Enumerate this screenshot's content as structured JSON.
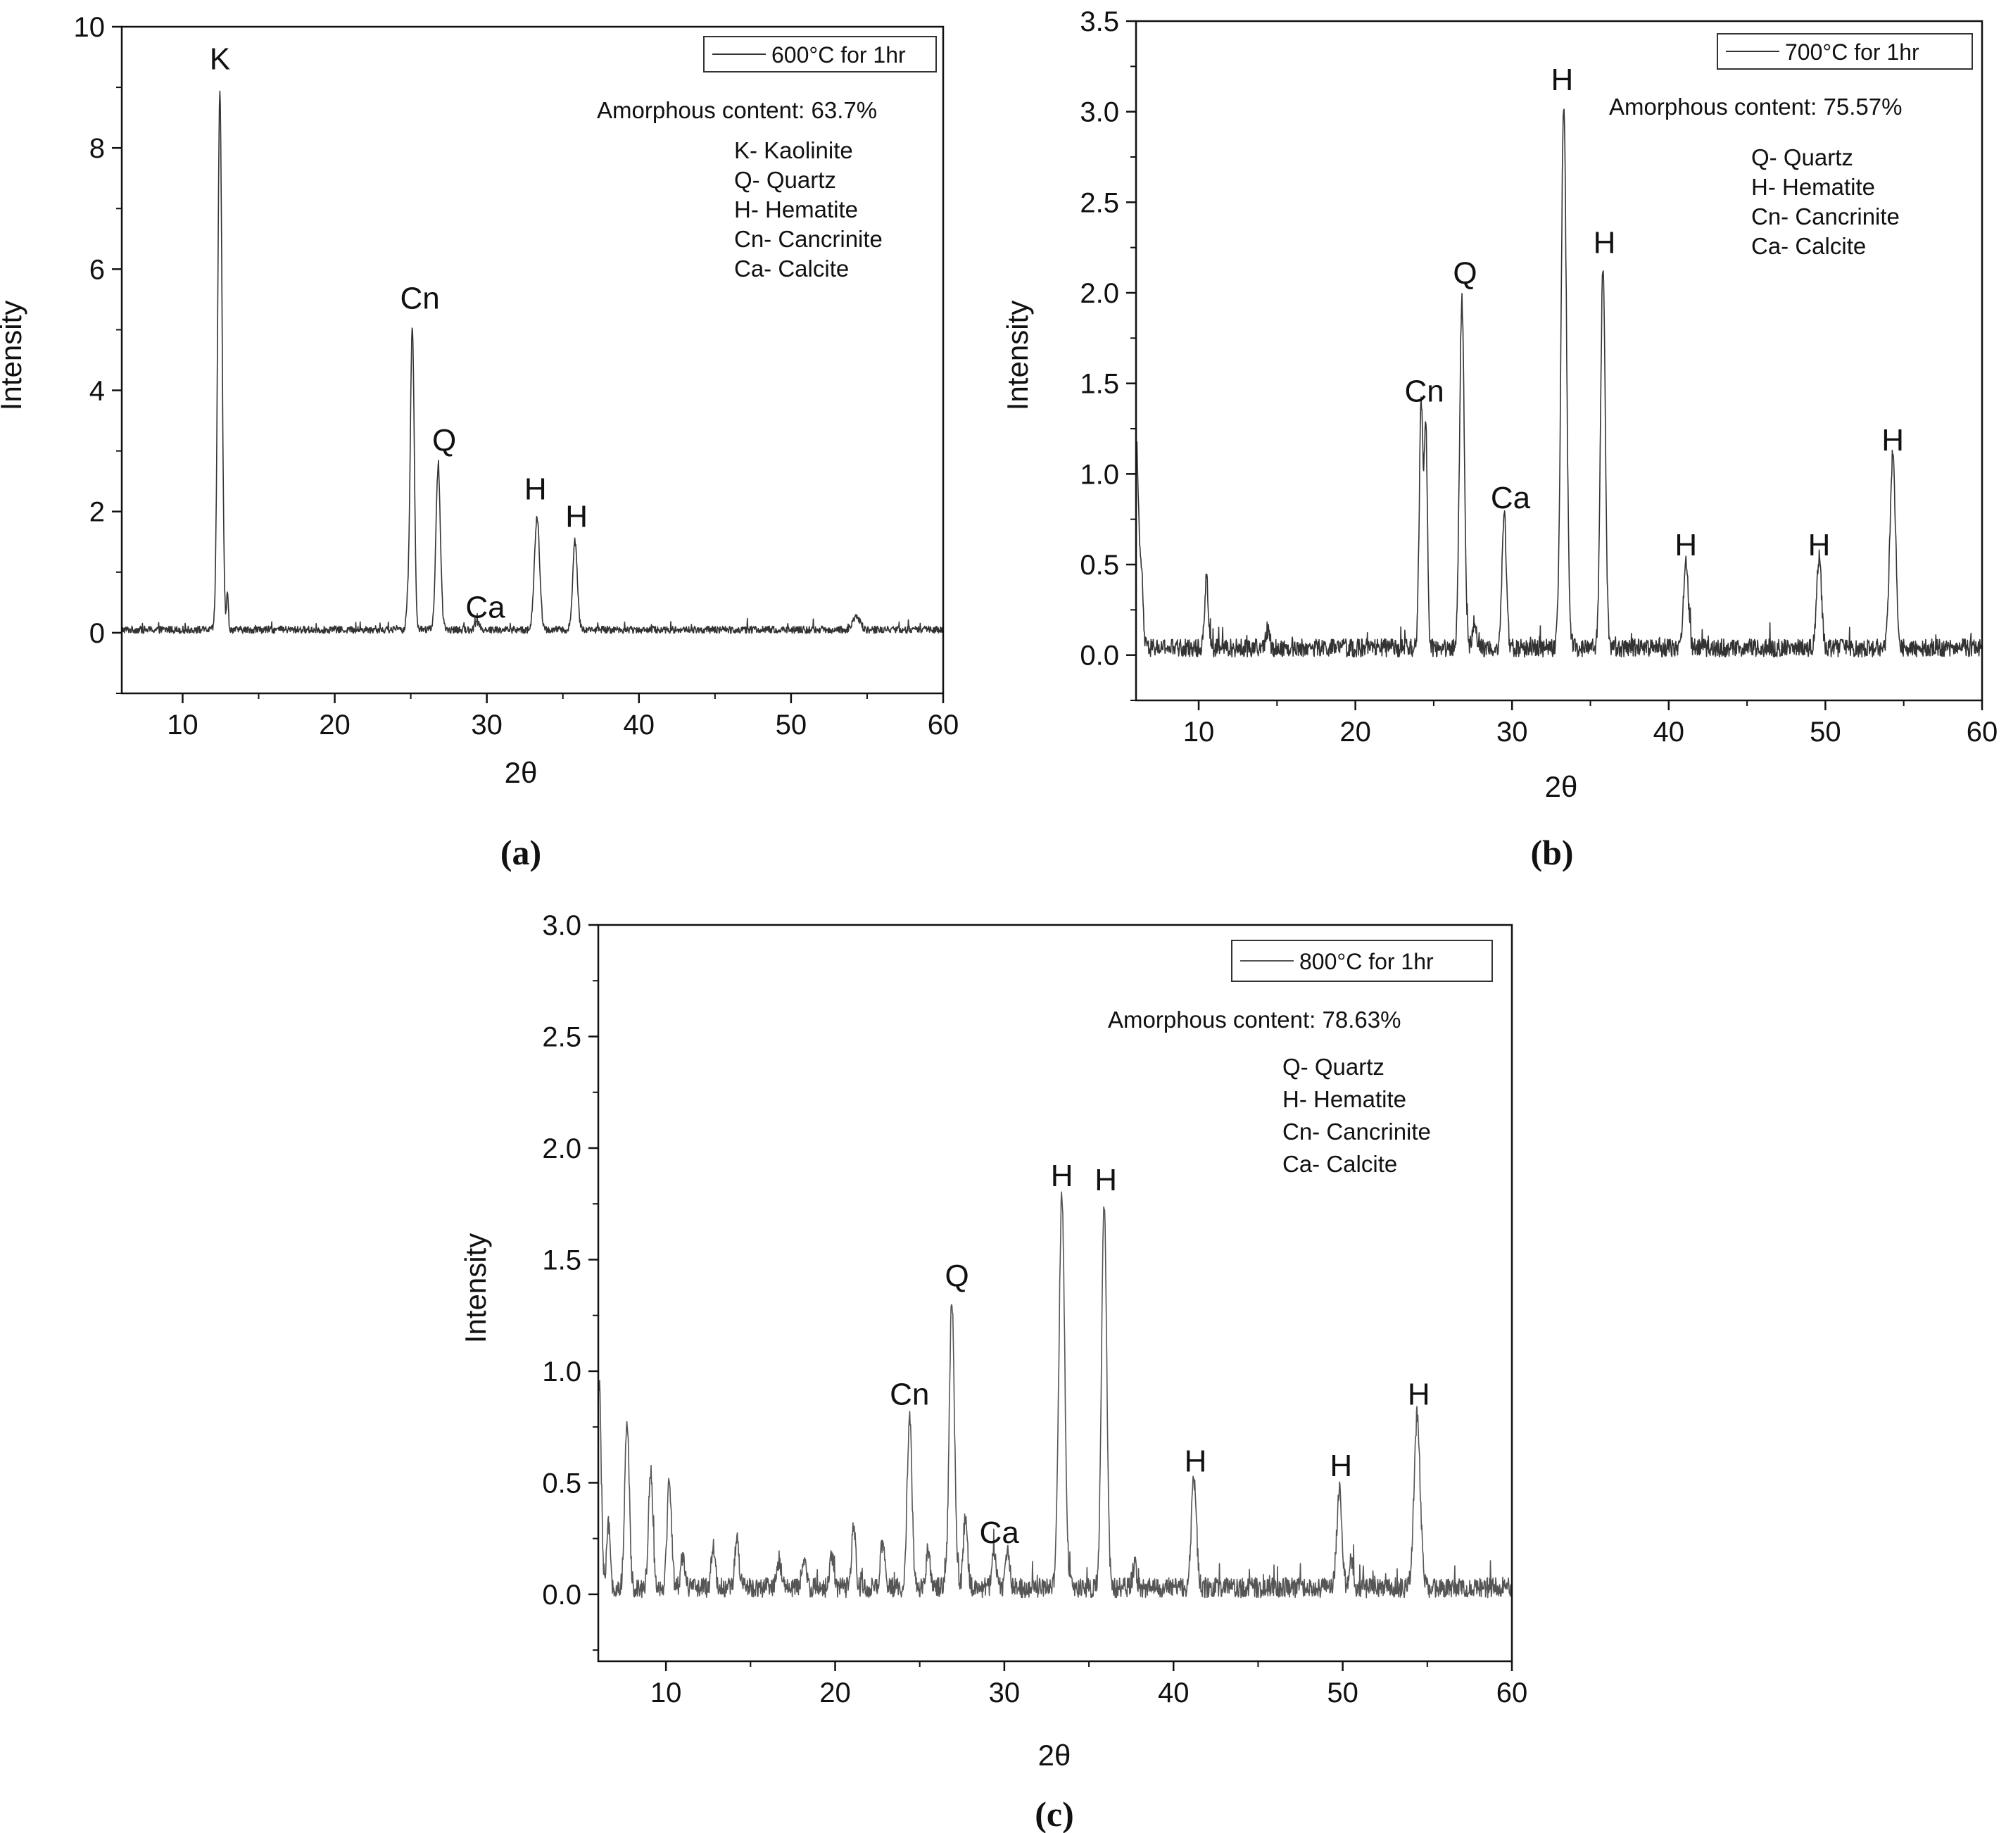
{
  "chart_data": [
    {
      "type": "line",
      "panel_label": "(a)",
      "xlabel": "2θ",
      "ylabel": "Intensity",
      "xlim": [
        6,
        60
      ],
      "ylim": [
        -1,
        10
      ],
      "xticks": [
        10,
        20,
        30,
        40,
        50,
        60
      ],
      "yticks": [
        0,
        2,
        4,
        6,
        8,
        10
      ],
      "ytick_labels": [
        "0",
        "2",
        "4",
        "6",
        "8",
        "10"
      ],
      "grid": false,
      "legend_position": "top-right",
      "series": [
        {
          "name": "600°C for 1hr",
          "color": "#333333",
          "baseline": 0.05,
          "noise": 0.12,
          "peaks": [
            {
              "x": 12.45,
              "y": 8.85,
              "w": 0.14
            },
            {
              "x": 12.95,
              "y": 0.6,
              "w": 0.06
            },
            {
              "x": 24.8,
              "y": 0.4,
              "w": 0.1
            },
            {
              "x": 25.1,
              "y": 5.0,
              "w": 0.13
            },
            {
              "x": 26.8,
              "y": 2.65,
              "w": 0.15
            },
            {
              "x": 29.4,
              "y": 0.12,
              "w": 0.15
            },
            {
              "x": 33.3,
              "y": 1.85,
              "w": 0.17
            },
            {
              "x": 35.8,
              "y": 1.45,
              "w": 0.15
            },
            {
              "x": 54.3,
              "y": 0.2,
              "w": 0.25
            }
          ]
        }
      ],
      "annotations": [
        {
          "text": "K",
          "x": 12.45,
          "y": 9.3
        },
        {
          "text": "Cn",
          "x": 25.6,
          "y": 5.35
        },
        {
          "text": "Q",
          "x": 27.2,
          "y": 3.0
        },
        {
          "text": "Ca",
          "x": 29.9,
          "y": 0.25
        },
        {
          "text": "H",
          "x": 33.2,
          "y": 2.2
        },
        {
          "text": "H",
          "x": 35.9,
          "y": 1.75
        }
      ],
      "notes": [
        "Amorphous content: 63.7%",
        "K- Kaolinite",
        "Q- Quartz",
        "H- Hematite",
        "Cn- Cancrinite",
        "Ca- Calcite"
      ]
    },
    {
      "type": "line",
      "panel_label": "(b)",
      "xlabel": "2θ",
      "ylabel": "Intensity",
      "xlim": [
        6,
        60
      ],
      "ylim": [
        -0.25,
        3.5
      ],
      "xticks": [
        10,
        20,
        30,
        40,
        50,
        60
      ],
      "yticks": [
        0,
        0.5,
        1.0,
        1.5,
        2.0,
        2.5,
        3.0,
        3.5
      ],
      "ytick_labels": [
        "0.0",
        "0.5",
        "1.0",
        "1.5",
        "2.0",
        "2.5",
        "3.0",
        "3.5"
      ],
      "grid": false,
      "legend_position": "top-right",
      "series": [
        {
          "name": "700°C for 1hr",
          "color": "#333333",
          "baseline": 0.04,
          "noise": 0.1,
          "peaks": [
            {
              "x": 6.05,
              "y": 1.1,
              "w": 0.12
            },
            {
              "x": 6.35,
              "y": 0.4,
              "w": 0.1
            },
            {
              "x": 10.5,
              "y": 0.38,
              "w": 0.12
            },
            {
              "x": 14.4,
              "y": 0.1,
              "w": 0.12
            },
            {
              "x": 24.2,
              "y": 1.33,
              "w": 0.12
            },
            {
              "x": 24.5,
              "y": 1.2,
              "w": 0.1
            },
            {
              "x": 26.8,
              "y": 1.92,
              "w": 0.15
            },
            {
              "x": 27.6,
              "y": 0.15,
              "w": 0.12
            },
            {
              "x": 29.5,
              "y": 0.73,
              "w": 0.14
            },
            {
              "x": 33.3,
              "y": 3.0,
              "w": 0.17
            },
            {
              "x": 35.8,
              "y": 2.12,
              "w": 0.15
            },
            {
              "x": 41.1,
              "y": 0.47,
              "w": 0.15
            },
            {
              "x": 49.6,
              "y": 0.5,
              "w": 0.15
            },
            {
              "x": 54.3,
              "y": 1.07,
              "w": 0.18
            }
          ]
        }
      ],
      "annotations": [
        {
          "text": "H",
          "x": 33.2,
          "y": 3.12
        },
        {
          "text": "Q",
          "x": 27.0,
          "y": 2.05
        },
        {
          "text": "H",
          "x": 35.9,
          "y": 2.22
        },
        {
          "text": "Cn",
          "x": 24.4,
          "y": 1.4
        },
        {
          "text": "Ca",
          "x": 29.9,
          "y": 0.81
        },
        {
          "text": "H",
          "x": 41.1,
          "y": 0.55
        },
        {
          "text": "H",
          "x": 49.6,
          "y": 0.55
        },
        {
          "text": "H",
          "x": 54.3,
          "y": 1.13
        }
      ],
      "notes": [
        "Amorphous content: 75.57%",
        "Q- Quartz",
        "H- Hematite",
        "Cn- Cancrinite",
        "Ca- Calcite"
      ]
    },
    {
      "type": "line",
      "panel_label": "(c)",
      "xlabel": "2θ",
      "ylabel": "Intensity",
      "xlim": [
        6,
        60
      ],
      "ylim": [
        -0.3,
        3.0
      ],
      "xticks": [
        10,
        20,
        30,
        40,
        50,
        60
      ],
      "yticks": [
        0,
        0.5,
        1.0,
        1.5,
        2.0,
        2.5,
        3.0
      ],
      "ytick_labels": [
        "0.0",
        "0.5",
        "1.0",
        "1.5",
        "2.0",
        "2.5",
        "3.0"
      ],
      "grid": false,
      "legend_position": "top-right",
      "series": [
        {
          "name": "800°C for 1hr",
          "color": "#555555",
          "baseline": 0.03,
          "noise": 0.09,
          "peaks": [
            {
              "x": 6.05,
              "y": 0.92,
              "w": 0.12
            },
            {
              "x": 6.6,
              "y": 0.28,
              "w": 0.1
            },
            {
              "x": 7.7,
              "y": 0.75,
              "w": 0.13
            },
            {
              "x": 9.1,
              "y": 0.53,
              "w": 0.13
            },
            {
              "x": 10.2,
              "y": 0.48,
              "w": 0.13
            },
            {
              "x": 11.0,
              "y": 0.15,
              "w": 0.12
            },
            {
              "x": 12.8,
              "y": 0.18,
              "w": 0.12
            },
            {
              "x": 14.2,
              "y": 0.22,
              "w": 0.12
            },
            {
              "x": 16.7,
              "y": 0.13,
              "w": 0.12
            },
            {
              "x": 18.2,
              "y": 0.12,
              "w": 0.12
            },
            {
              "x": 19.8,
              "y": 0.15,
              "w": 0.12
            },
            {
              "x": 21.1,
              "y": 0.27,
              "w": 0.12
            },
            {
              "x": 22.8,
              "y": 0.2,
              "w": 0.12
            },
            {
              "x": 24.4,
              "y": 0.77,
              "w": 0.14
            },
            {
              "x": 25.5,
              "y": 0.18,
              "w": 0.12
            },
            {
              "x": 26.9,
              "y": 1.3,
              "w": 0.15
            },
            {
              "x": 27.7,
              "y": 0.33,
              "w": 0.12
            },
            {
              "x": 29.4,
              "y": 0.16,
              "w": 0.12
            },
            {
              "x": 30.2,
              "y": 0.16,
              "w": 0.12
            },
            {
              "x": 33.4,
              "y": 1.76,
              "w": 0.17
            },
            {
              "x": 35.9,
              "y": 1.72,
              "w": 0.15
            },
            {
              "x": 37.7,
              "y": 0.1,
              "w": 0.12
            },
            {
              "x": 41.2,
              "y": 0.49,
              "w": 0.15
            },
            {
              "x": 49.8,
              "y": 0.44,
              "w": 0.15
            },
            {
              "x": 50.5,
              "y": 0.12,
              "w": 0.12
            },
            {
              "x": 54.4,
              "y": 0.77,
              "w": 0.18
            }
          ]
        }
      ],
      "annotations": [
        {
          "text": "H",
          "x": 33.4,
          "y": 1.83
        },
        {
          "text": "H",
          "x": 36.0,
          "y": 1.81
        },
        {
          "text": "Q",
          "x": 27.2,
          "y": 1.38
        },
        {
          "text": "Cn",
          "x": 24.4,
          "y": 0.85
        },
        {
          "text": "Ca",
          "x": 29.7,
          "y": 0.23
        },
        {
          "text": "H",
          "x": 41.3,
          "y": 0.55
        },
        {
          "text": "H",
          "x": 49.9,
          "y": 0.53
        },
        {
          "text": "H",
          "x": 54.5,
          "y": 0.85
        }
      ],
      "notes": [
        "Amorphous content: 78.63%",
        "Q- Quartz",
        "H- Hematite",
        "Cn- Cancrinite",
        "Ca- Calcite"
      ]
    }
  ]
}
